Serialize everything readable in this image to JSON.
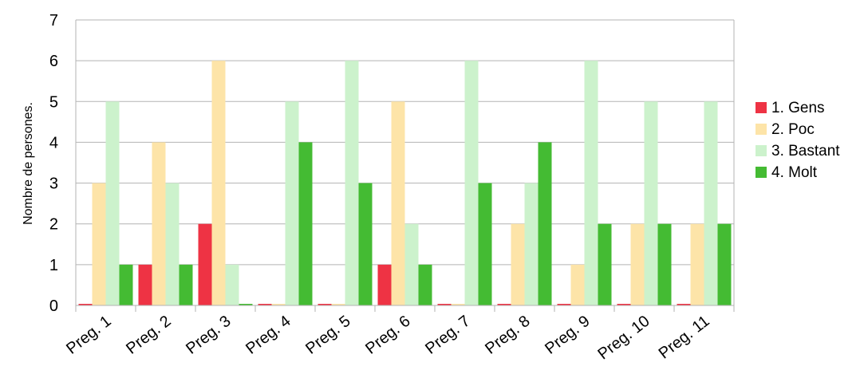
{
  "chart_data": {
    "type": "bar",
    "title": "",
    "xlabel": "",
    "ylabel": "Nombre de persones.",
    "ylim": [
      0,
      7
    ],
    "yticks": [
      0,
      1,
      2,
      3,
      4,
      5,
      6,
      7
    ],
    "grid": true,
    "legend_position": "right",
    "categories": [
      "Preg. 1",
      "Preg. 2",
      "Preg. 3",
      "Preg. 4",
      "Preg. 5",
      "Preg. 6",
      "Preg. 7",
      "Preg. 8",
      "Preg. 9",
      "Preg. 10",
      "Preg. 11"
    ],
    "series": [
      {
        "name": "1. Gens",
        "color": "#ee3344",
        "values": [
          0,
          1,
          2,
          0,
          0,
          1,
          0,
          0,
          0,
          0,
          0
        ]
      },
      {
        "name": "2. Poc",
        "color": "#fde4a8",
        "values": [
          3,
          4,
          6,
          0,
          0,
          5,
          0,
          2,
          1,
          2,
          2
        ]
      },
      {
        "name": "3. Bastant",
        "color": "#ccf2cc",
        "values": [
          5,
          3,
          1,
          5,
          6,
          2,
          6,
          3,
          6,
          5,
          5
        ]
      },
      {
        "name": "4. Molt",
        "color": "#44bb33",
        "values": [
          1,
          1,
          0,
          4,
          3,
          1,
          3,
          4,
          2,
          2,
          2
        ]
      }
    ]
  }
}
